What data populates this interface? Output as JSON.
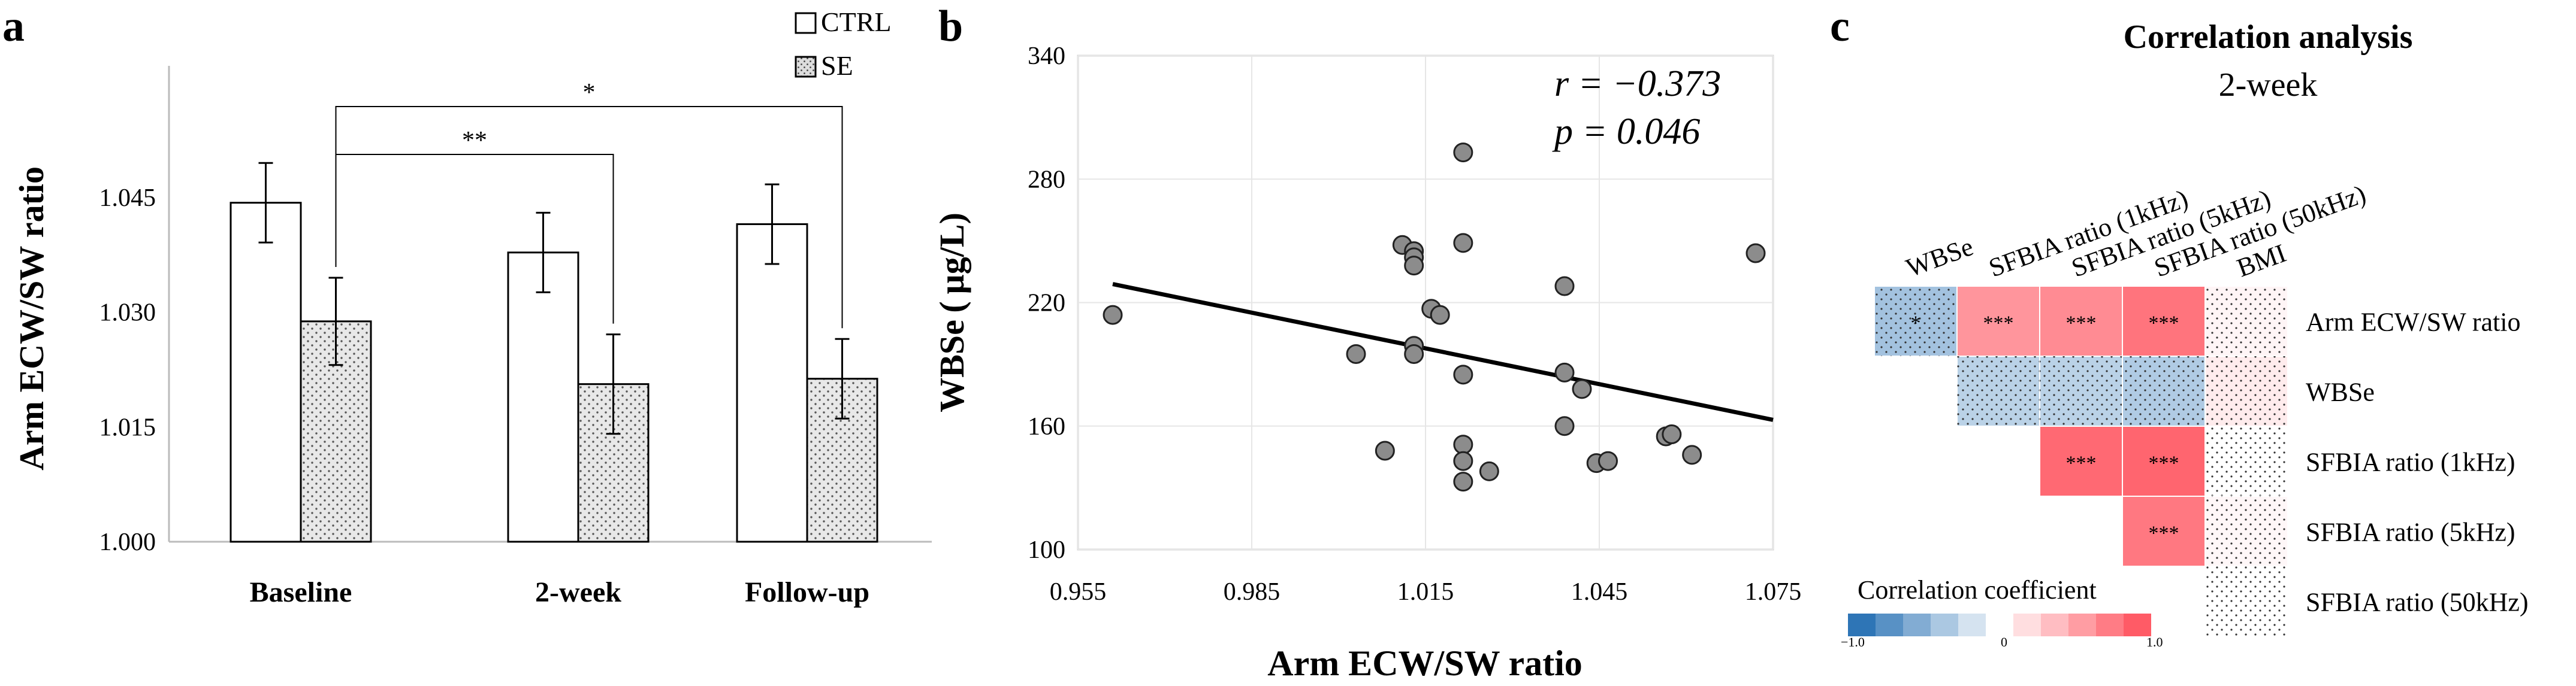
{
  "panels": {
    "a": "a",
    "b": "b",
    "c": "c"
  },
  "chart_data": [
    {
      "type": "bar",
      "panel": "a",
      "ylabel": "Arm ECW/SW ratio",
      "ylim": [
        1.0,
        1.06
      ],
      "yticks": [
        1.0,
        1.015,
        1.03,
        1.045
      ],
      "ytick_labels": [
        "1.000",
        "1.015",
        "1.030",
        "1.045"
      ],
      "categories": [
        "Baseline",
        "2-week",
        "Follow-up"
      ],
      "series": [
        {
          "name": "CTRL",
          "values": [
            1.0443,
            1.0378,
            1.0415
          ],
          "errors": [
            0.0052,
            0.0052,
            0.0052
          ]
        },
        {
          "name": "SE",
          "values": [
            1.0288,
            1.0206,
            1.0213
          ],
          "errors": [
            0.0057,
            0.0065,
            0.0052
          ]
        }
      ],
      "brackets": [
        {
          "label": "**",
          "from": "Baseline SE",
          "to": "2-week SE"
        },
        {
          "label": "*",
          "from": "Baseline SE",
          "to": "Follow-up SE"
        }
      ]
    },
    {
      "type": "scatter",
      "panel": "b",
      "xlabel": "Arm ECW/SW ratio",
      "ylabel": "WBSe ( µg/L)",
      "xlim": [
        0.955,
        1.075
      ],
      "ylim": [
        100,
        340
      ],
      "xticks": [
        "0.955",
        "0.985",
        "1.015",
        "1.045",
        "1.075"
      ],
      "yticks": [
        "100",
        "160",
        "220",
        "280",
        "340"
      ],
      "points": [
        [
          0.961,
          214
        ],
        [
          1.003,
          195
        ],
        [
          1.008,
          148
        ],
        [
          1.011,
          248
        ],
        [
          1.013,
          245
        ],
        [
          1.013,
          242
        ],
        [
          1.013,
          238
        ],
        [
          1.013,
          199
        ],
        [
          1.013,
          195
        ],
        [
          1.016,
          217
        ],
        [
          1.0175,
          214
        ],
        [
          1.0215,
          293
        ],
        [
          1.0215,
          249
        ],
        [
          1.0215,
          185
        ],
        [
          1.0215,
          151
        ],
        [
          1.0215,
          143
        ],
        [
          1.0215,
          133
        ],
        [
          1.026,
          138
        ],
        [
          1.039,
          228
        ],
        [
          1.039,
          186
        ],
        [
          1.039,
          160
        ],
        [
          1.042,
          178
        ],
        [
          1.0445,
          142
        ],
        [
          1.0465,
          143
        ],
        [
          1.0565,
          155
        ],
        [
          1.0575,
          156
        ],
        [
          1.061,
          146
        ],
        [
          1.072,
          244
        ]
      ],
      "trendline": {
        "x": [
          0.961,
          1.075
        ],
        "y": [
          229,
          163
        ]
      },
      "stats": {
        "r": "r = −0.373",
        "p": "p = 0.046"
      }
    },
    {
      "type": "heatmap",
      "panel": "c",
      "title": "Correlation analysis",
      "subtitle": "2-week",
      "columns": [
        "WBSe",
        "SFBIA ratio (1kHz)",
        "SFBIA ratio (5kHz)",
        "SFBIA ratio (50kHz)",
        "BMI"
      ],
      "rows": [
        "Arm ECW/SW ratio",
        "WBSe",
        "SFBIA ratio (1kHz)",
        "SFBIA ratio (5kHz)",
        "SFBIA ratio (50kHz)"
      ],
      "values": [
        [
          -0.373,
          0.55,
          0.6,
          0.72,
          0.05
        ],
        [
          null,
          -0.28,
          -0.28,
          -0.32,
          0.1
        ],
        [
          null,
          null,
          0.78,
          0.8,
          0.0
        ],
        [
          null,
          null,
          null,
          0.7,
          0.04
        ],
        [
          null,
          null,
          null,
          null,
          0.0
        ]
      ],
      "significance": [
        [
          "*",
          "***",
          "***",
          "***",
          ""
        ],
        [
          "",
          "",
          "",
          "",
          ""
        ],
        [
          "",
          "",
          "***",
          "***",
          ""
        ],
        [
          "",
          "",
          "",
          "***",
          ""
        ],
        [
          "",
          "",
          "",
          "",
          ""
        ]
      ],
      "colorbar": {
        "label": "Correlation coefficient",
        "min_label": "−1.0",
        "mid_label": "0",
        "max_label": "1.0",
        "min": -1.0,
        "max": 1.0
      },
      "colors": {
        "negative": "#2e75b6",
        "positive": "#ff5b66",
        "neutral": "#ffffff"
      }
    }
  ]
}
